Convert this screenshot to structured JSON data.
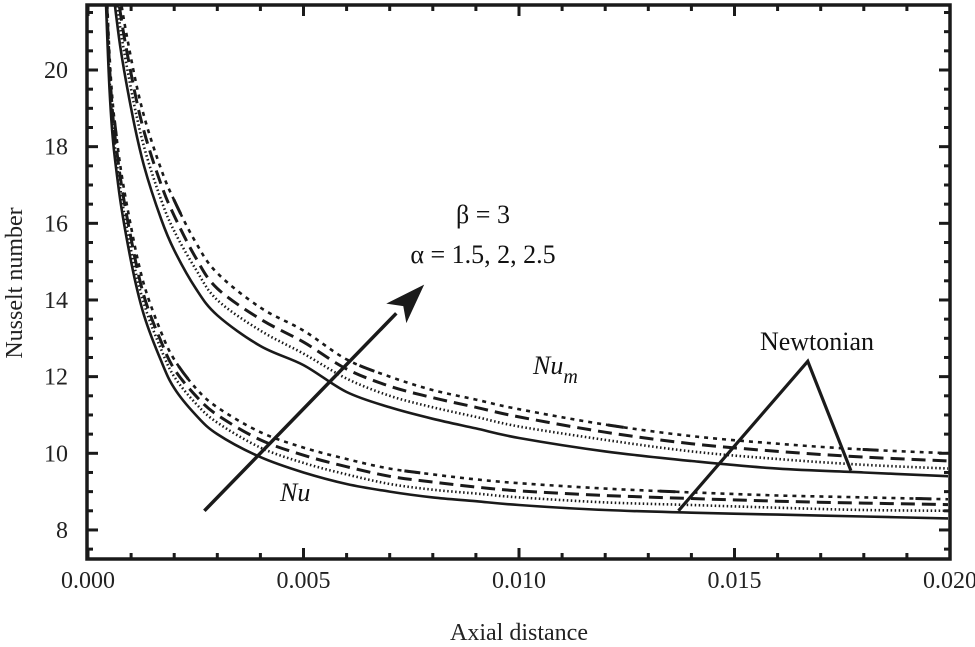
{
  "chart_data": {
    "type": "line",
    "title": "",
    "xlabel": "Axial distance",
    "ylabel": "Nusselt number",
    "xlim": [
      0.0,
      0.0203
    ],
    "ylim": [
      7.3,
      21.7
    ],
    "grid": false,
    "x_ticks": [
      "0.000",
      "0.005",
      "0.010",
      "0.015",
      "0.020"
    ],
    "x_tick_values": [
      0.0,
      0.005,
      0.01,
      0.015,
      0.02
    ],
    "y_ticks": [
      "8",
      "10",
      "12",
      "14",
      "16",
      "18",
      "20"
    ],
    "y_tick_values": [
      8,
      10,
      12,
      14,
      16,
      18,
      20
    ],
    "x": [
      0.0005,
      0.0007,
      0.001,
      0.0013,
      0.0017,
      0.002,
      0.0025,
      0.003,
      0.004,
      0.005,
      0.006,
      0.007,
      0.008,
      0.009,
      0.01,
      0.012,
      0.014,
      0.016,
      0.018,
      0.02
    ],
    "series": [
      {
        "name": "Nu_m Newtonian",
        "group": "Nu_m",
        "style": "solid",
        "values": [
          23.5,
          21.0,
          19.0,
          17.5,
          16.1,
          15.3,
          14.3,
          13.6,
          12.8,
          12.3,
          11.6,
          11.2,
          10.9,
          10.65,
          10.4,
          10.05,
          9.8,
          9.6,
          9.5,
          9.4
        ]
      },
      {
        "name": "Nu_m alpha=1.5",
        "group": "Nu_m",
        "style": "dotted",
        "values": [
          24.0,
          21.5,
          19.5,
          18.0,
          16.6,
          15.8,
          14.8,
          14.0,
          13.2,
          12.6,
          11.95,
          11.5,
          11.2,
          10.95,
          10.7,
          10.35,
          10.05,
          9.85,
          9.7,
          9.6
        ]
      },
      {
        "name": "Nu_m alpha=2",
        "group": "Nu_m",
        "style": "dashed",
        "values": [
          24.4,
          21.9,
          19.9,
          18.4,
          17.0,
          16.2,
          15.1,
          14.3,
          13.5,
          12.9,
          12.2,
          11.75,
          11.45,
          11.2,
          10.95,
          10.55,
          10.25,
          10.05,
          9.9,
          9.8
        ]
      },
      {
        "name": "Nu_m alpha=2.5",
        "group": "Nu_m",
        "style": "dotdash",
        "values": [
          24.8,
          22.3,
          20.3,
          18.8,
          17.4,
          16.6,
          15.5,
          14.7,
          13.8,
          13.2,
          12.45,
          12.0,
          11.65,
          11.4,
          11.15,
          10.75,
          10.45,
          10.25,
          10.1,
          10.0
        ]
      },
      {
        "name": "Nu Newtonian",
        "group": "Nu",
        "style": "solid",
        "values": [
          19.5,
          17.0,
          15.0,
          13.6,
          12.4,
          11.7,
          11.0,
          10.5,
          9.9,
          9.5,
          9.2,
          9.0,
          8.85,
          8.75,
          8.65,
          8.52,
          8.45,
          8.4,
          8.35,
          8.3
        ]
      },
      {
        "name": "Nu alpha=1.5",
        "group": "Nu",
        "style": "dotted",
        "values": [
          19.8,
          17.3,
          15.3,
          13.9,
          12.7,
          12.0,
          11.3,
          10.8,
          10.15,
          9.75,
          9.45,
          9.2,
          9.05,
          8.95,
          8.85,
          8.72,
          8.65,
          8.58,
          8.52,
          8.5
        ]
      },
      {
        "name": "Nu alpha=2",
        "group": "Nu",
        "style": "dashed",
        "values": [
          20.1,
          17.6,
          15.6,
          14.1,
          12.9,
          12.2,
          11.5,
          11.0,
          10.35,
          9.95,
          9.65,
          9.4,
          9.25,
          9.12,
          9.02,
          8.9,
          8.82,
          8.75,
          8.7,
          8.66
        ]
      },
      {
        "name": "Nu alpha=2.5",
        "group": "Nu",
        "style": "dotdash",
        "values": [
          20.4,
          17.9,
          15.9,
          14.4,
          13.15,
          12.45,
          11.7,
          11.2,
          10.55,
          10.15,
          9.85,
          9.6,
          9.45,
          9.32,
          9.22,
          9.08,
          8.98,
          8.9,
          8.85,
          8.8
        ]
      }
    ],
    "annotations": [
      {
        "text": "β = 3",
        "x": 0.0078,
        "y": 16.1
      },
      {
        "text": "α = 1.5, 2, 2.5",
        "x": 0.0078,
        "y": 15.0
      },
      {
        "text": "Nu_m",
        "x": 0.0112,
        "y": 12.0
      },
      {
        "text": "Nu",
        "x": 0.0052,
        "y": 8.9
      },
      {
        "text": "Newtonian",
        "x": 0.0167,
        "y": 12.8
      }
    ],
    "arrow": {
      "from": [
        0.0027,
        8.5
      ],
      "to": [
        0.0078,
        14.4
      ],
      "label": "increasing alpha"
    },
    "newtonian_pointer": {
      "apex": [
        0.0167,
        12.4
      ],
      "left_end": [
        0.0137,
        8.5
      ],
      "right_end": [
        0.0177,
        9.55
      ]
    }
  },
  "labels": {
    "xlabel": "Axial distance",
    "ylabel": "Nusselt number",
    "beta": "β = 3",
    "alpha": "α = 1.5, 2, 2.5",
    "nu_m_base": "Nu",
    "nu_m_sub": "m",
    "nu": "Nu",
    "newtonian": "Newtonian"
  },
  "colors": {
    "line": "#1a1a1a",
    "axis": "#1a1a1a",
    "background": "#ffffff"
  }
}
